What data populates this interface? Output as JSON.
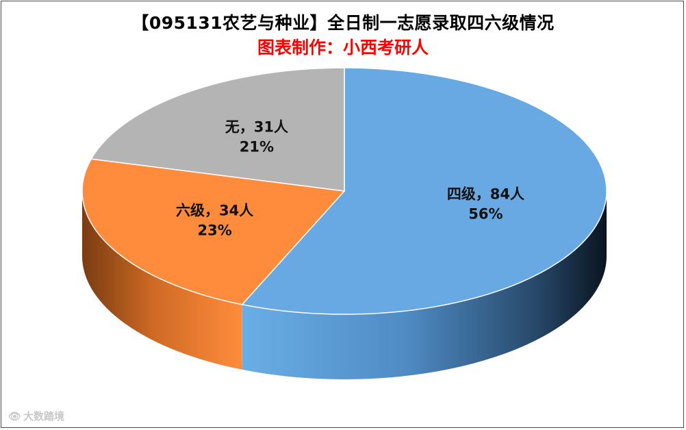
{
  "title": "【095131农艺与种业】全日制一志愿录取四六级情况",
  "subtitle": "图表制作：小西考研人",
  "watermark": "大数踏境",
  "colors": {
    "title": "#000000",
    "subtitle": "#ff0000",
    "four_level": "#69a9e3",
    "six_level": "#ff8c3c",
    "none": "#b4b4b4"
  },
  "chart_data": {
    "type": "pie",
    "style": "3d",
    "slices": [
      {
        "label": "四级",
        "count": 84,
        "percent": 56,
        "color": "#69a9e3",
        "data_label_line1": "四级，84人",
        "data_label_line2": "56%"
      },
      {
        "label": "六级",
        "count": 34,
        "percent": 23,
        "color": "#ff8c3c",
        "data_label_line1": "六级，34人",
        "data_label_line2": "23%"
      },
      {
        "label": "无",
        "count": 31,
        "percent": 21,
        "color": "#b4b4b4",
        "data_label_line1": "无，31人",
        "data_label_line2": "21%"
      }
    ]
  }
}
